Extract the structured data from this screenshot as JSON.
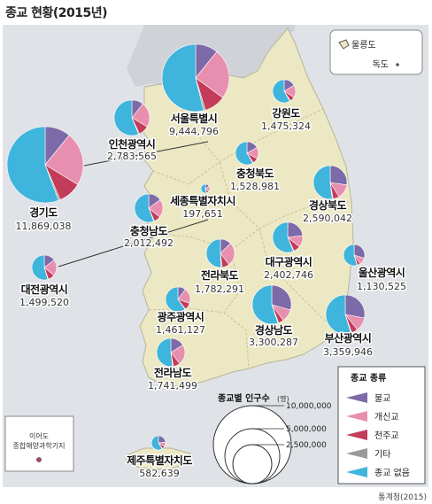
{
  "title": "종교 현황(2015년)",
  "source": "통계청(2015)",
  "inset": {
    "ulleungdo": "울릉도",
    "dokdo": "독도"
  },
  "ieodo": {
    "line1": "이어도",
    "line2": "종합해양과학기지"
  },
  "legend": {
    "title": "종교 종류",
    "items": [
      {
        "label": "불교",
        "color": "#7d6aa8"
      },
      {
        "label": "개신교",
        "color": "#e88fb0"
      },
      {
        "label": "천주교",
        "color": "#c33c5a"
      },
      {
        "label": "기타",
        "color": "#9a9a9a"
      },
      {
        "label": "종교 없음",
        "color": "#3fb4dc"
      }
    ]
  },
  "size_legend": {
    "title": "종교별 인구수",
    "unit": "(명)",
    "values": [
      "10,000,000",
      "5,000,000",
      "2,500,000"
    ]
  },
  "regions": [
    {
      "name": "서울특별시",
      "value": "9,444,796"
    },
    {
      "name": "강원도",
      "value": "1,475,324"
    },
    {
      "name": "인천광역시",
      "value": "2,783,565"
    },
    {
      "name": "경기도",
      "value": "11,869,038"
    },
    {
      "name": "충청북도",
      "value": "1,528,981"
    },
    {
      "name": "경상북도",
      "value": "2,590,042"
    },
    {
      "name": "세종특별자치시",
      "value": "197,651"
    },
    {
      "name": "충청남도",
      "value": "2,012,492"
    },
    {
      "name": "대전광역시",
      "value": "1,499,520"
    },
    {
      "name": "대구광역시",
      "value": "2,402,746"
    },
    {
      "name": "울산광역시",
      "value": "1,130,525"
    },
    {
      "name": "전라북도",
      "value": "1,782,291"
    },
    {
      "name": "광주광역시",
      "value": "1,461,127"
    },
    {
      "name": "경상남도",
      "value": "3,300,287"
    },
    {
      "name": "부산광역시",
      "value": "3,359,946"
    },
    {
      "name": "전라남도",
      "value": "1,741,499"
    },
    {
      "name": "제주특별자치도",
      "value": "582,639"
    }
  ],
  "chart_data": {
    "type": "pie",
    "series_names": [
      "불교",
      "개신교",
      "천주교",
      "기타",
      "종교 없음"
    ],
    "pies": [
      {
        "region": "서울특별시",
        "values": [
          10.8,
          24.2,
          10.3,
          0.9,
          53.8
        ]
      },
      {
        "region": "강원도",
        "values": [
          16.4,
          17.5,
          6.9,
          1.0,
          58.2
        ]
      },
      {
        "region": "인천광역시",
        "values": [
          10.6,
          22.8,
          9.6,
          0.8,
          56.2
        ]
      },
      {
        "region": "경기도",
        "values": [
          10.9,
          22.8,
          9.8,
          0.8,
          55.7
        ]
      },
      {
        "region": "충청북도",
        "values": [
          16.7,
          15.9,
          7.9,
          0.9,
          58.6
        ]
      },
      {
        "region": "경상북도",
        "values": [
          27.4,
          13.9,
          5.9,
          0.9,
          51.9
        ]
      },
      {
        "region": "세종특별자치시",
        "values": [
          15.9,
          20.7,
          8.7,
          0.8,
          53.9
        ]
      },
      {
        "region": "충청남도",
        "values": [
          15.0,
          20.7,
          7.7,
          0.8,
          55.8
        ]
      },
      {
        "region": "대전광역시",
        "values": [
          14.8,
          21.2,
          8.6,
          0.8,
          54.6
        ]
      },
      {
        "region": "대구광역시",
        "values": [
          23.2,
          12.6,
          7.3,
          0.7,
          56.2
        ]
      },
      {
        "region": "울산광역시",
        "values": [
          29.8,
          10.4,
          4.8,
          0.6,
          54.4
        ]
      },
      {
        "region": "전라북도",
        "values": [
          12.8,
          26.9,
          8.3,
          1.4,
          50.6
        ]
      },
      {
        "region": "광주광역시",
        "values": [
          10.1,
          20.0,
          9.4,
          0.7,
          59.8
        ]
      },
      {
        "region": "경상남도",
        "values": [
          29.4,
          10.5,
          4.3,
          0.7,
          55.1
        ]
      },
      {
        "region": "부산광역시",
        "values": [
          28.0,
          11.4,
          5.2,
          0.7,
          54.7
        ]
      },
      {
        "region": "전라남도",
        "values": [
          16.1,
          23.2,
          7.7,
          0.9,
          52.1
        ]
      },
      {
        "region": "제주특별자치도",
        "values": [
          23.4,
          10.0,
          7.0,
          1.0,
          58.6
        ]
      }
    ]
  }
}
